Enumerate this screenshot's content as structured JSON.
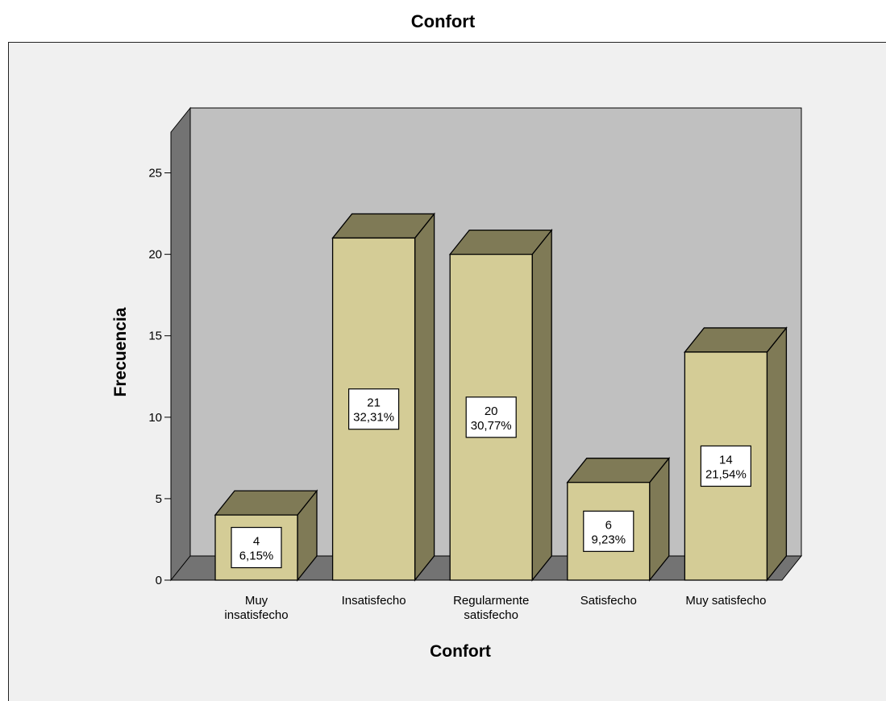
{
  "chart_data": {
    "type": "bar",
    "title": "Confort",
    "xlabel": "Confort",
    "ylabel": "Frecuencia",
    "ylim": [
      0,
      27.5
    ],
    "yticks": [
      0,
      5,
      10,
      15,
      20,
      25
    ],
    "categories": [
      [
        "Muy",
        "insatisfecho"
      ],
      [
        "Insatisfecho"
      ],
      [
        "Regularmente",
        "satisfecho"
      ],
      [
        "Satisfecho"
      ],
      [
        "Muy satisfecho"
      ]
    ],
    "values": [
      4,
      21,
      20,
      6,
      14
    ],
    "percent_labels": [
      "6,15%",
      "32,31%",
      "30,77%",
      "9,23%",
      "21,54%"
    ],
    "three_d": true,
    "grid": false,
    "colors": {
      "bar_front": "#d4cc96",
      "bar_top": "#7f7a56",
      "bar_side": "#7f7a56",
      "back_wall": "#c0c0c0",
      "side_wall": "#737373",
      "floor": "#737373",
      "background": "#f0f0f0"
    }
  }
}
